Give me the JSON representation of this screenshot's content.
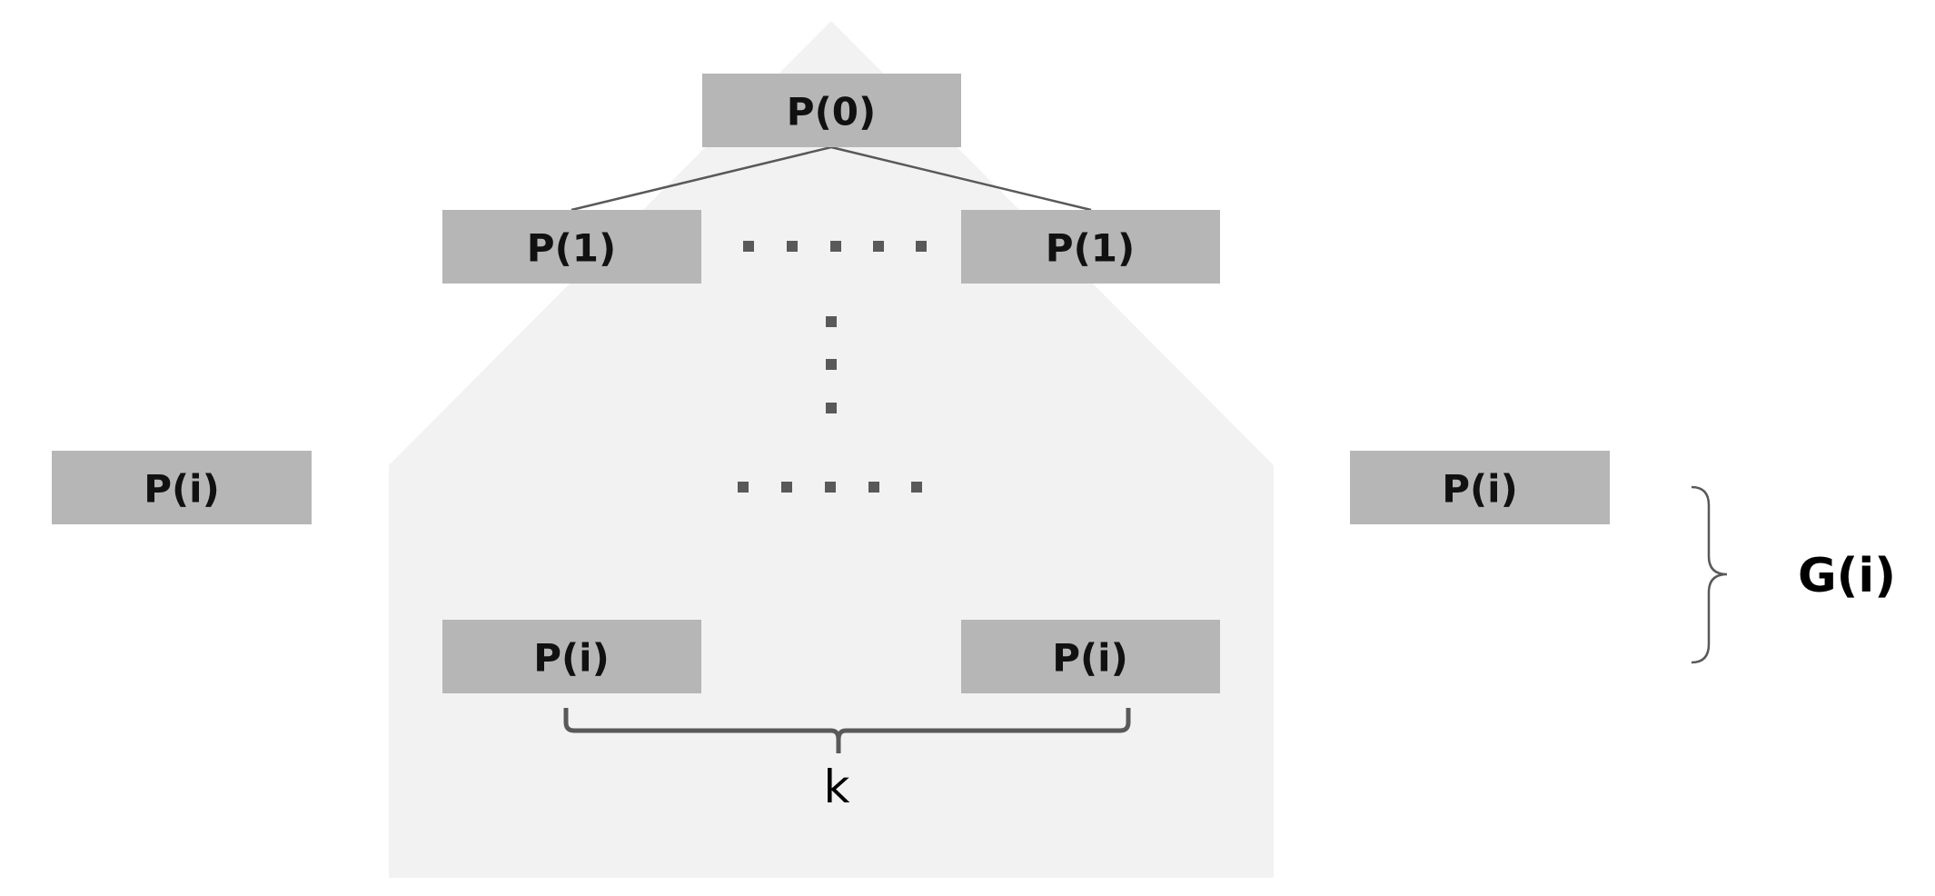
{
  "nodes": {
    "root": "P(0)",
    "level1_left": "P(1)",
    "level1_right": "P(1)",
    "leaf_left": "P(i)",
    "leaf_right": "P(i)",
    "outside_left": "P(i)",
    "outside_right": "P(i)"
  },
  "labels": {
    "k": "k",
    "group": "G(i)"
  },
  "colors": {
    "node_fill": "#b6b6b6",
    "background_shape": "#f2f2f2",
    "lines": "#595959"
  }
}
